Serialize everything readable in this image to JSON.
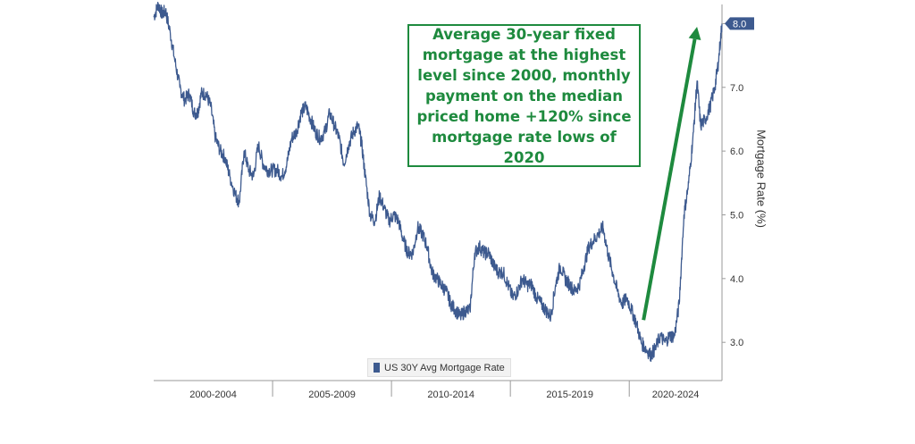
{
  "chart_data": {
    "type": "line",
    "title": "",
    "xlabel": "",
    "ylabel": "Mortgage Rate (%)",
    "ylim": [
      2.4,
      8.3
    ],
    "xlim": [
      2000.0,
      2023.9
    ],
    "y_ticks": [
      "3.0",
      "4.0",
      "5.0",
      "6.0",
      "7.0",
      "8.0"
    ],
    "x_tick_labels": [
      "2000-2004",
      "2005-2009",
      "2010-2014",
      "2015-2019",
      "2020-2024"
    ],
    "x_tick_bounds": [
      2000,
      2005,
      2010,
      2015,
      2020,
      2024
    ],
    "last_value_label": "8.0",
    "legend_position": "bottom-center",
    "grid": false,
    "series": [
      {
        "name": "US 30Y Avg Mortgage Rate",
        "color": "#3d5a8f",
        "x": [
          2000.0,
          2000.2,
          2000.35,
          2000.5,
          2000.7,
          2000.9,
          2001.1,
          2001.3,
          2001.5,
          2001.7,
          2001.85,
          2002.0,
          2002.2,
          2002.4,
          2002.6,
          2002.8,
          2003.0,
          2003.2,
          2003.45,
          2003.6,
          2003.8,
          2004.0,
          2004.2,
          2004.4,
          2004.6,
          2004.8,
          2005.0,
          2005.2,
          2005.4,
          2005.6,
          2005.8,
          2006.0,
          2006.2,
          2006.4,
          2006.6,
          2006.8,
          2007.0,
          2007.2,
          2007.4,
          2007.6,
          2007.8,
          2008.0,
          2008.2,
          2008.4,
          2008.6,
          2008.75,
          2008.9,
          2009.1,
          2009.3,
          2009.5,
          2009.7,
          2009.9,
          2010.1,
          2010.3,
          2010.5,
          2010.7,
          2010.9,
          2011.1,
          2011.3,
          2011.5,
          2011.7,
          2011.9,
          2012.1,
          2012.3,
          2012.5,
          2012.7,
          2012.9,
          2013.1,
          2013.3,
          2013.5,
          2013.7,
          2013.9,
          2014.1,
          2014.3,
          2014.5,
          2014.7,
          2014.9,
          2015.1,
          2015.3,
          2015.5,
          2015.7,
          2015.9,
          2016.1,
          2016.3,
          2016.5,
          2016.7,
          2016.9,
          2017.1,
          2017.3,
          2017.5,
          2017.7,
          2017.9,
          2018.1,
          2018.3,
          2018.5,
          2018.7,
          2018.9,
          2019.1,
          2019.3,
          2019.5,
          2019.7,
          2019.9,
          2020.1,
          2020.3,
          2020.5,
          2020.7,
          2020.9,
          2021.1,
          2021.3,
          2021.5,
          2021.7,
          2021.9,
          2022.1,
          2022.3,
          2022.5,
          2022.7,
          2022.85,
          2023.0,
          2023.2,
          2023.4,
          2023.6,
          2023.75,
          2023.9
        ],
        "values": [
          8.1,
          8.3,
          8.15,
          8.2,
          7.85,
          7.4,
          7.0,
          6.8,
          6.9,
          6.6,
          6.6,
          6.9,
          6.9,
          6.7,
          6.2,
          6.0,
          5.9,
          5.6,
          5.3,
          5.2,
          6.0,
          5.7,
          5.6,
          6.1,
          5.8,
          5.7,
          5.7,
          5.7,
          5.6,
          5.8,
          6.2,
          6.3,
          6.6,
          6.7,
          6.5,
          6.3,
          6.2,
          6.3,
          6.6,
          6.4,
          6.2,
          5.8,
          6.1,
          6.3,
          6.4,
          6.1,
          5.6,
          5.0,
          4.9,
          5.3,
          5.1,
          4.9,
          5.0,
          4.9,
          4.6,
          4.4,
          4.4,
          4.8,
          4.7,
          4.5,
          4.1,
          4.0,
          3.9,
          3.8,
          3.6,
          3.5,
          3.4,
          3.5,
          3.5,
          4.4,
          4.5,
          4.4,
          4.4,
          4.2,
          4.1,
          4.1,
          3.9,
          3.7,
          3.8,
          4.0,
          3.9,
          3.9,
          3.7,
          3.6,
          3.5,
          3.4,
          3.9,
          4.2,
          4.0,
          3.9,
          3.8,
          3.9,
          4.2,
          4.5,
          4.6,
          4.7,
          4.8,
          4.4,
          4.1,
          3.8,
          3.6,
          3.7,
          3.5,
          3.3,
          3.0,
          2.9,
          2.8,
          2.9,
          3.1,
          3.0,
          3.1,
          3.1,
          3.6,
          5.0,
          5.5,
          6.3,
          7.1,
          6.4,
          6.5,
          6.7,
          7.0,
          7.4,
          8.0
        ]
      }
    ],
    "annotation": {
      "text": "Average 30-year fixed\nmortgage at the highest\nlevel since 2000, monthly\npayment on the median\npriced home +120% since\nmortgage rate lows of 2020",
      "color": "#1e8a3e"
    },
    "arrow": {
      "from": {
        "x": 2020.6,
        "y": 3.35
      },
      "to": {
        "x": 2022.85,
        "y": 7.95
      },
      "color": "#1e8a3e"
    }
  }
}
